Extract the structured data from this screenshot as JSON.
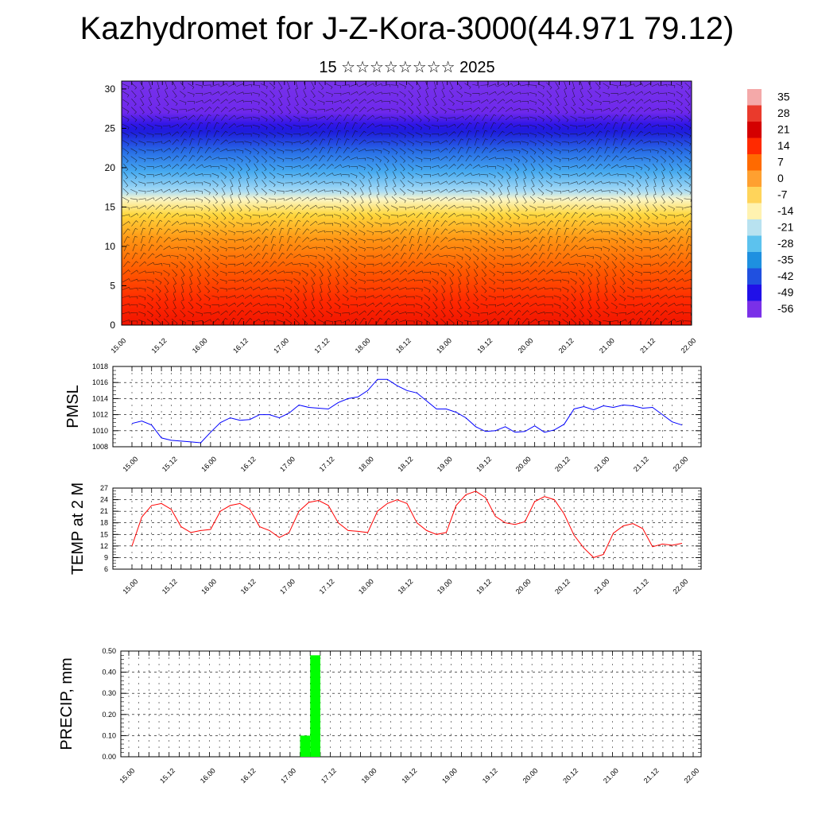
{
  "header": {
    "title": "Kazhydromet for J-Z-Kora-3000(44.971 79.12)",
    "subtitle": "15 ☆☆☆☆☆☆☆☆ 2025"
  },
  "x_ticks": [
    "15.00",
    "15.12",
    "16.00",
    "16.12",
    "17.00",
    "17.12",
    "18.00",
    "18.12",
    "19.00",
    "19.12",
    "20.00",
    "20.12",
    "21.00",
    "21.12",
    "22.00"
  ],
  "chart_data": [
    {
      "type": "heatmap",
      "name": "temperature-wind-cross-section",
      "yticks": [
        "0",
        "5",
        "10",
        "15",
        "20",
        "25",
        "30"
      ],
      "ylim": [
        0,
        31
      ],
      "colorbar_labels": [
        "35",
        "28",
        "21",
        "14",
        "7",
        "0",
        "-7",
        "-14",
        "-21",
        "-28",
        "-35",
        "-42",
        "-49",
        "-56"
      ],
      "colorbar_colors": [
        "#f4a9a9",
        "#ea3a2c",
        "#d40000",
        "#ff2a00",
        "#ff6a00",
        "#ffa030",
        "#ffd45a",
        "#fff2b0",
        "#b8e2f0",
        "#5cc2ee",
        "#1e90e0",
        "#2050e0",
        "#2010e8",
        "#7a30e8"
      ]
    },
    {
      "type": "line",
      "name": "PMSL",
      "ylabel": "PMSL",
      "ylim": [
        1008,
        1018
      ],
      "yticks": [
        "1008",
        "1010",
        "1012",
        "1014",
        "1016",
        "1018"
      ],
      "color": "#0000ff",
      "x": [
        0,
        0.25,
        0.5,
        0.75,
        1,
        1.25,
        1.5,
        1.75,
        2,
        2.25,
        2.5,
        2.75,
        3,
        3.25,
        3.5,
        3.75,
        4,
        4.25,
        4.5,
        4.75,
        5,
        5.25,
        5.5,
        5.75,
        6,
        6.25,
        6.5,
        6.75,
        7,
        7.25,
        7.5,
        7.75,
        8,
        8.25,
        8.5,
        8.75,
        9,
        9.25,
        9.5,
        9.75,
        10,
        10.25,
        10.5,
        10.75,
        11,
        11.25,
        11.5,
        11.75,
        12,
        12.25,
        12.5,
        12.75,
        13,
        13.25,
        13.5,
        13.75,
        14
      ],
      "values": [
        1010.9,
        1011.2,
        1010.7,
        1009.1,
        1008.8,
        1008.7,
        1008.6,
        1008.5,
        1009.8,
        1011.0,
        1011.6,
        1011.3,
        1011.4,
        1012.0,
        1012.0,
        1011.6,
        1012.2,
        1013.2,
        1012.9,
        1012.8,
        1012.7,
        1013.5,
        1014.0,
        1014.2,
        1015.0,
        1016.4,
        1016.4,
        1015.6,
        1015.0,
        1014.7,
        1013.7,
        1012.7,
        1012.7,
        1012.3,
        1011.6,
        1010.5,
        1009.9,
        1010.0,
        1010.5,
        1009.8,
        1009.9,
        1010.6,
        1009.8,
        1010.1,
        1010.8,
        1012.7,
        1013.0,
        1012.6,
        1013.1,
        1012.9,
        1013.2,
        1013.1,
        1012.8,
        1012.9,
        1012.0,
        1011.1,
        1010.7
      ]
    },
    {
      "type": "line",
      "name": "TEMP at 2 M",
      "ylabel": "TEMP at 2 M",
      "ylim": [
        6,
        27
      ],
      "yticks": [
        "6",
        "9",
        "12",
        "15",
        "18",
        "21",
        "24",
        "27"
      ],
      "color": "#ff0000",
      "x": [
        0,
        0.25,
        0.5,
        0.75,
        1,
        1.25,
        1.5,
        1.75,
        2,
        2.25,
        2.5,
        2.75,
        3,
        3.25,
        3.5,
        3.75,
        4,
        4.25,
        4.5,
        4.75,
        5,
        5.25,
        5.5,
        5.75,
        6,
        6.25,
        6.5,
        6.75,
        7,
        7.25,
        7.5,
        7.75,
        8,
        8.25,
        8.5,
        8.75,
        9,
        9.25,
        9.5,
        9.75,
        10,
        10.25,
        10.5,
        10.75,
        11,
        11.25,
        11.5,
        11.75,
        12,
        12.25,
        12.5,
        12.75,
        13,
        13.25,
        13.5,
        13.75,
        14
      ],
      "values": [
        12.0,
        19.5,
        22.5,
        23.0,
        21.5,
        17.0,
        15.5,
        16.0,
        16.3,
        21.0,
        22.5,
        23.0,
        21.5,
        17.0,
        16.0,
        14.2,
        15.5,
        21.0,
        23.3,
        23.8,
        22.5,
        18.0,
        16.0,
        15.8,
        15.5,
        21.0,
        23.0,
        24.0,
        23.0,
        18.0,
        16.0,
        15.0,
        15.5,
        22.5,
        25.3,
        26.2,
        24.5,
        19.7,
        18.0,
        17.6,
        18.3,
        23.5,
        24.8,
        24.0,
        20.3,
        14.8,
        11.5,
        9.0,
        9.8,
        15.3,
        17.2,
        17.8,
        16.5,
        11.8,
        12.5,
        12.2,
        12.7
      ]
    },
    {
      "type": "bar",
      "name": "PRECIP, mm",
      "ylabel": "PRECIP, mm",
      "ylim": [
        0,
        0.5
      ],
      "yticks": [
        "0.00",
        "0.10",
        "0.20",
        "0.30",
        "0.40",
        "0.50"
      ],
      "color": "#00ff00",
      "bars": [
        {
          "x_start": 4.25,
          "x_end": 4.5,
          "value": 0.1
        },
        {
          "x_start": 4.5,
          "x_end": 4.75,
          "value": 0.48
        }
      ]
    }
  ]
}
